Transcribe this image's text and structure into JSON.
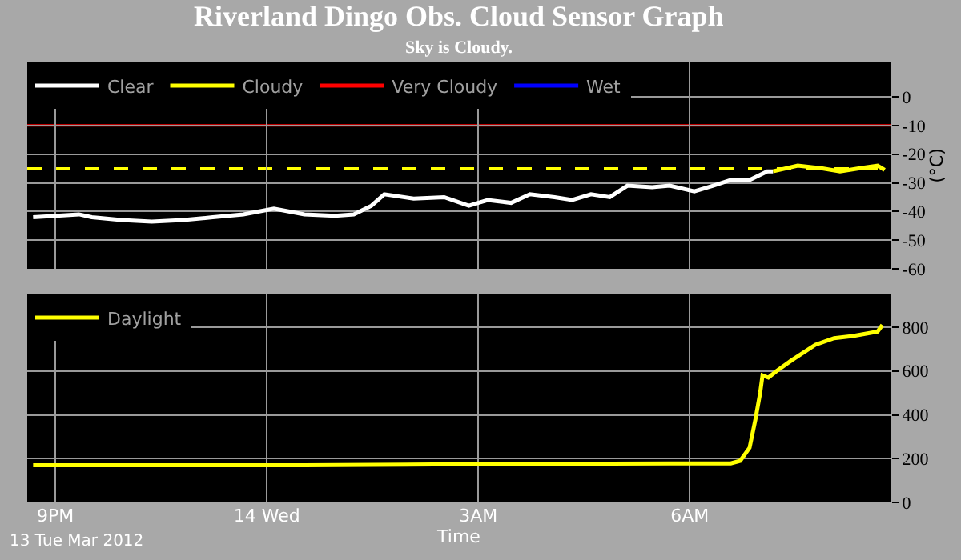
{
  "chart_data": [
    {
      "type": "line",
      "title": "Riverland Dingo Obs. Cloud Sensor Graph",
      "subtitle": "Sky is Cloudy.",
      "ylabel": "(°C)",
      "xlim": [
        "2012-03-13T20:36",
        "2012-03-14T08:51"
      ],
      "xticks": [
        {
          "value": "2012-03-13T21:00",
          "label": null
        },
        {
          "value": "2012-03-14T00:00",
          "label": null
        },
        {
          "value": "2012-03-14T03:00",
          "label": null
        },
        {
          "value": "2012-03-14T06:00",
          "label": null
        }
      ],
      "ylim": [
        -60,
        12
      ],
      "yticks": [
        0,
        -10,
        -20,
        -30,
        -40,
        -50,
        -60
      ],
      "tick_labels": "y",
      "grid": true,
      "legend": "top left",
      "marker": "none",
      "line_style": "solid",
      "ref_lines": [
        {
          "axis": "y",
          "value": -10,
          "color": "#ff0000",
          "line_style": "solid"
        },
        {
          "axis": "y",
          "value": -25,
          "color": "#ffff00",
          "line_style": "dashed"
        }
      ],
      "series": [
        {
          "name": "Clear",
          "color": "#ffffff",
          "x": [
            "2012-03-13T20:41",
            "2012-03-13T21:20",
            "2012-03-13T21:31",
            "2012-03-13T21:56",
            "2012-03-13T22:22",
            "2012-03-13T22:49",
            "2012-03-13T23:14",
            "2012-03-13T23:40",
            "2012-03-14T00:06",
            "2012-03-14T00:32",
            "2012-03-14T00:58",
            "2012-03-14T01:14",
            "2012-03-14T01:29",
            "2012-03-14T01:40",
            "2012-03-14T02:05",
            "2012-03-14T02:31",
            "2012-03-14T02:52",
            "2012-03-14T03:08",
            "2012-03-14T03:28",
            "2012-03-14T03:44",
            "2012-03-14T04:05",
            "2012-03-14T04:20",
            "2012-03-14T04:36",
            "2012-03-14T04:52",
            "2012-03-14T05:07",
            "2012-03-14T05:28",
            "2012-03-14T05:43",
            "2012-03-14T06:04",
            "2012-03-14T06:20",
            "2012-03-14T06:35",
            "2012-03-14T06:51",
            "2012-03-14T07:06",
            "2012-03-14T07:11"
          ],
          "values": [
            -42,
            -41,
            -42,
            -43,
            -43.5,
            -43,
            -42,
            -41,
            -39,
            -41,
            -41.5,
            -41,
            -38,
            -34,
            -35.5,
            -35,
            -38,
            -36,
            -37,
            -34,
            -35,
            -36,
            -34,
            -35,
            -31,
            -31.5,
            -31,
            -33,
            -31,
            -29,
            -29,
            -26,
            -26
          ]
        },
        {
          "name": "Cloudy",
          "color": "#ffff00",
          "x": [
            "2012-03-14T07:11",
            "2012-03-14T07:32",
            "2012-03-14T07:53",
            "2012-03-14T08:08",
            "2012-03-14T08:24",
            "2012-03-14T08:40",
            "2012-03-14T08:46"
          ],
          "values": [
            -26,
            -24,
            -25,
            -26,
            -25,
            -24,
            -25.5
          ]
        },
        {
          "name": "Very Cloudy",
          "color": "#ff0000"
        },
        {
          "name": "Wet",
          "color": "#0000ff"
        }
      ]
    },
    {
      "type": "line",
      "xlabel": "Time",
      "annotations": [
        "13 Tue Mar 2012"
      ],
      "xlim": [
        "2012-03-13T20:36",
        "2012-03-14T08:51"
      ],
      "xticks": [
        {
          "value": "2012-03-13T21:00",
          "label": "9PM"
        },
        {
          "value": "2012-03-14T00:00",
          "label": "14 Wed"
        },
        {
          "value": "2012-03-14T03:00",
          "label": "3AM"
        },
        {
          "value": "2012-03-14T06:00",
          "label": "6AM"
        }
      ],
      "ylim": [
        0,
        950
      ],
      "yticks": [
        0,
        200,
        400,
        600,
        800
      ],
      "grid": true,
      "legend": "top left",
      "marker": "none",
      "line_style": "solid",
      "series": [
        {
          "name": "Daylight",
          "color": "#ffff00",
          "x": [
            "2012-03-13T20:41",
            "2012-03-14T00:32",
            "2012-03-14T03:08",
            "2012-03-14T05:43",
            "2012-03-14T06:35",
            "2012-03-14T06:43",
            "2012-03-14T06:51",
            "2012-03-14T06:56",
            "2012-03-14T07:00",
            "2012-03-14T07:02",
            "2012-03-14T07:07",
            "2012-03-14T07:14",
            "2012-03-14T07:27",
            "2012-03-14T07:47",
            "2012-03-14T08:03",
            "2012-03-14T08:19",
            "2012-03-14T08:40",
            "2012-03-14T08:44"
          ],
          "values": [
            170,
            170,
            175,
            178,
            178,
            190,
            250,
            380,
            500,
            580,
            570,
            600,
            650,
            720,
            750,
            760,
            780,
            810
          ]
        }
      ]
    }
  ]
}
